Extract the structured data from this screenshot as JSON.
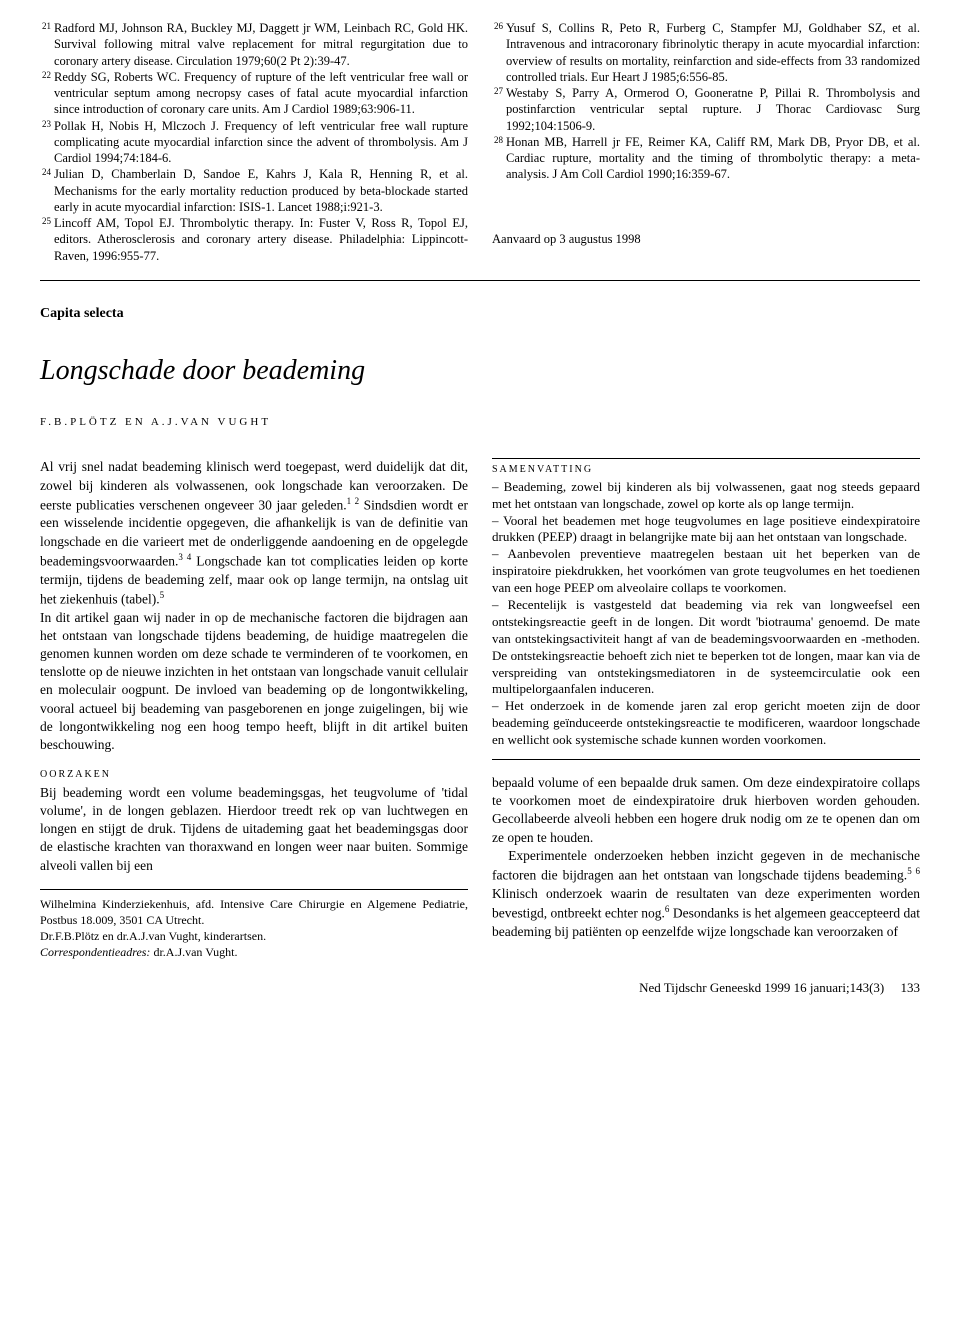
{
  "refs_left": [
    {
      "n": "21",
      "text": "Radford MJ, Johnson RA, Buckley MJ, Daggett jr WM, Leinbach RC, Gold HK. Survival following mitral valve replacement for mitral regurgitation due to coronary artery disease. Circulation 1979;60(2 Pt 2):39-47."
    },
    {
      "n": "22",
      "text": "Reddy SG, Roberts WC. Frequency of rupture of the left ventricular free wall or ventricular septum among necropsy cases of fatal acute myocardial infarction since introduction of coronary care units. Am J Cardiol 1989;63:906-11."
    },
    {
      "n": "23",
      "text": "Pollak H, Nobis H, Mlczoch J. Frequency of left ventricular free wall rupture complicating acute myocardial infarction since the advent of thrombolysis. Am J Cardiol 1994;74:184-6."
    },
    {
      "n": "24",
      "text": "Julian D, Chamberlain D, Sandoe E, Kahrs J, Kala R, Henning R, et al. Mechanisms for the early mortality reduction produced by beta-blockade started early in acute myocardial infarction: ISIS-1. Lancet 1988;i:921-3."
    },
    {
      "n": "25",
      "text": "Lincoff AM, Topol EJ. Thrombolytic therapy. In: Fuster V, Ross R, Topol EJ, editors. Atherosclerosis and coronary artery disease. Philadelphia: Lippincott-Raven, 1996:955-77."
    }
  ],
  "refs_right": [
    {
      "n": "26",
      "text": "Yusuf S, Collins R, Peto R, Furberg C, Stampfer MJ, Goldhaber SZ, et al. Intravenous and intracoronary fibrinolytic therapy in acute myocardial infarction: overview of results on mortality, reinfarction and side-effects from 33 randomized controlled trials. Eur Heart J 1985;6:556-85."
    },
    {
      "n": "27",
      "text": "Westaby S, Parry A, Ormerod O, Gooneratne P, Pillai R. Thrombolysis and postinfarction ventricular septal rupture. J Thorac Cardiovasc Surg 1992;104:1506-9."
    },
    {
      "n": "28",
      "text": "Honan MB, Harrell jr FE, Reimer KA, Califf RM, Mark DB, Pryor DB, et al. Cardiac rupture, mortality and the timing of thrombolytic therapy: a meta-analysis. J Am Coll Cardiol 1990;16:359-67."
    }
  ],
  "accepted": "Aanvaard op 3 augustus 1998",
  "section_label": "Capita selecta",
  "article_title": "Longschade door beademing",
  "authors": "F.B.PLÖTZ EN A.J.VAN VUGHT",
  "left_intro_html": "Al vrij snel nadat beademing klinisch werd toegepast, werd duidelijk dat dit, zowel bij kinderen als volwassenen, ook longschade kan veroorzaken. De eerste publicaties verschenen ongeveer 30 jaar geleden.<sup>1 2</sup> Sindsdien wordt er een wisselende incidentie opgegeven, die afhankelijk is van de definitie van longschade en die varieert met de onderliggende aandoening en de opgelegde beademingsvoorwaarden.<sup>3 4</sup> Longschade kan tot complicaties leiden op korte termijn, tijdens de beademing zelf, maar ook op lange termijn, na ontslag uit het ziekenhuis (tabel).<sup>5</sup>",
  "left_intro2_html": "In dit artikel gaan wij nader in op de mechanische factoren die bijdragen aan het ontstaan van longschade tijdens beademing, de huidige maatregelen die genomen kunnen worden om deze schade te verminderen of te voorkomen, en tenslotte op de nieuwe inzichten in het ontstaan van longschade vanuit cellulair en moleculair oogpunt. De invloed van beademing op de longontwikkeling, vooral actueel bij beademing van pasgeborenen en jonge zuigelingen, bij wie de longontwikkeling nog een hoog tempo heeft, blijft in dit artikel buiten beschouwing.",
  "oorzaken_head": "OORZAKEN",
  "oorzaken_text": "Bij beademing wordt een volume beademingsgas, het teugvolume of 'tidal volume', in de longen geblazen. Hierdoor treedt rek op van luchtwegen en longen en stijgt de druk. Tijdens de uitademing gaat het beademingsgas door de elastische krachten van thoraxwand en longen weer naar buiten. Sommige alveoli vallen bij een",
  "affil1": "Wilhelmina Kinderziekenhuis, afd. Intensive Care Chirurgie en Algemene Pediatrie, Postbus 18.009, 3501 CA Utrecht.",
  "affil2": "Dr.F.B.Plötz en dr.A.J.van Vught, kinderartsen.",
  "affil3_label": "Correspondentieadres:",
  "affil3_name": " dr.A.J.van Vught.",
  "summary_title": "SAMENVATTING",
  "summary_items": [
    "– Beademing, zowel bij kinderen als bij volwassenen, gaat nog steeds gepaard met het ontstaan van longschade, zowel op korte als op lange termijn.",
    "– Vooral het beademen met hoge teugvolumes en lage positieve eindexpiratoire drukken (PEEP) draagt in belangrijke mate bij aan het ontstaan van longschade.",
    "– Aanbevolen preventieve maatregelen bestaan uit het beperken van de inspiratoire piekdrukken, het voorkómen van grote teugvolumes en het toedienen van een hoge PEEP om alveolaire collaps te voorkomen.",
    "– Recentelijk is vastgesteld dat beademing via rek van longweefsel een ontstekingsreactie geeft in de longen. Dit wordt 'biotrauma' genoemd. De mate van ontstekingsactiviteit hangt af van de beademingsvoorwaarden en -methoden. De ontstekingsreactie behoeft zich niet te beperken tot de longen, maar kan via de verspreiding van ontstekingsmediatoren in de systeemcirculatie ook een multipelorgaanfalen induceren.",
    "– Het onderzoek in de komende jaren zal erop gericht moeten zijn de door beademing geïnduceerde ontstekingsreactie te modificeren, waardoor longschade en wellicht ook systemische schade kunnen worden voorkomen."
  ],
  "right_para1_html": "bepaald volume of een bepaalde druk samen. Om deze eindexpiratoire collaps te voorkomen moet de eindexpiratoire druk hierboven worden gehouden. Gecollabeerde alveoli hebben een hogere druk nodig om ze te openen dan om ze open te houden.",
  "right_para2_html": "Experimentele onderzoeken hebben inzicht gegeven in de mechanische factoren die bijdragen aan het ontstaan van longschade tijdens beademing.<sup>5 6</sup> Klinisch onderzoek waarin de resultaten van deze experimenten worden bevestigd, ontbreekt echter nog.<sup>6</sup> Desondanks is het algemeen geaccepteerd dat beademing bij patiënten op eenzelfde wijze longschade kan veroorzaken of",
  "footer": "Ned Tijdschr Geneeskd 1999 16 januari;143(3)",
  "page_num": "133"
}
